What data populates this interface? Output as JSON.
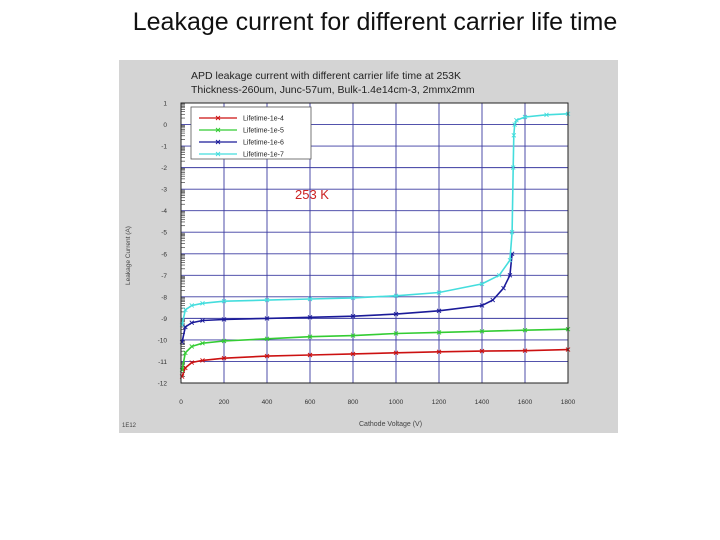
{
  "slide": {
    "title": "Leakage current for different carrier life time"
  },
  "chart_data": {
    "type": "line",
    "title": "APD leakage current with different carrier life time at 253K",
    "subtitle": "Thickness-260um, Junc-57um, Bulk-1.4e14cm-3, 2mmx2mm",
    "annotation": "253 K",
    "xlabel": "Cathode Voltage (V)",
    "ylabel": "Leakage Current (A)",
    "corner_label": "1E12",
    "xlim": [
      0,
      1800
    ],
    "ylim": [
      -12,
      1
    ],
    "x_ticks": [
      0,
      200,
      400,
      600,
      800,
      1000,
      1200,
      1400,
      1600,
      1800
    ],
    "x_tick_labels": [
      "0",
      "200",
      "400",
      "600",
      "800",
      "1000",
      "1200",
      "1400",
      "1600",
      "1800"
    ],
    "y_ticks": [
      1,
      0,
      -1,
      -2,
      -3,
      -4,
      -5,
      -6,
      -7,
      -8,
      -9,
      -10,
      -11,
      -12
    ],
    "y_tick_labels": [
      "1",
      "0",
      "-1",
      "-2",
      "-3",
      "-4",
      "-5",
      "-6",
      "-7",
      "-8",
      "-9",
      "-10",
      "-11",
      "-12"
    ],
    "grid": true,
    "legend_position": "top-left",
    "series": [
      {
        "name": "Lifetime-1e-4",
        "color": "#cc1111",
        "x": [
          5,
          20,
          50,
          100,
          200,
          400,
          600,
          800,
          1000,
          1200,
          1400,
          1600,
          1800
        ],
        "y": [
          -11.7,
          -11.3,
          -11.05,
          -10.95,
          -10.85,
          -10.75,
          -10.7,
          -10.65,
          -10.6,
          -10.55,
          -10.52,
          -10.5,
          -10.45
        ]
      },
      {
        "name": "Lifetime-1e-5",
        "color": "#33cc33",
        "x": [
          5,
          20,
          50,
          100,
          200,
          400,
          600,
          800,
          1000,
          1200,
          1400,
          1600,
          1800
        ],
        "y": [
          -11.4,
          -10.6,
          -10.3,
          -10.15,
          -10.05,
          -9.95,
          -9.85,
          -9.8,
          -9.7,
          -9.65,
          -9.6,
          -9.55,
          -9.5
        ]
      },
      {
        "name": "Lifetime-1e-6",
        "color": "#1a1a99",
        "x": [
          5,
          20,
          50,
          100,
          200,
          400,
          600,
          800,
          1000,
          1200,
          1400,
          1450,
          1500,
          1530,
          1540
        ],
        "y": [
          -10.1,
          -9.4,
          -9.2,
          -9.1,
          -9.05,
          -9.0,
          -8.95,
          -8.9,
          -8.8,
          -8.65,
          -8.4,
          -8.15,
          -7.6,
          -7.0,
          -6.0
        ]
      },
      {
        "name": "Lifetime-1e-7",
        "color": "#44dddd",
        "x": [
          5,
          20,
          50,
          100,
          200,
          400,
          600,
          800,
          1000,
          1200,
          1400,
          1480,
          1530,
          1540,
          1545,
          1548,
          1552,
          1560,
          1600,
          1700,
          1800
        ],
        "y": [
          -9.3,
          -8.6,
          -8.4,
          -8.3,
          -8.2,
          -8.15,
          -8.1,
          -8.05,
          -7.95,
          -7.8,
          -7.4,
          -7.0,
          -6.3,
          -5.0,
          -2.0,
          -0.5,
          0.0,
          0.2,
          0.35,
          0.45,
          0.5
        ]
      }
    ]
  }
}
